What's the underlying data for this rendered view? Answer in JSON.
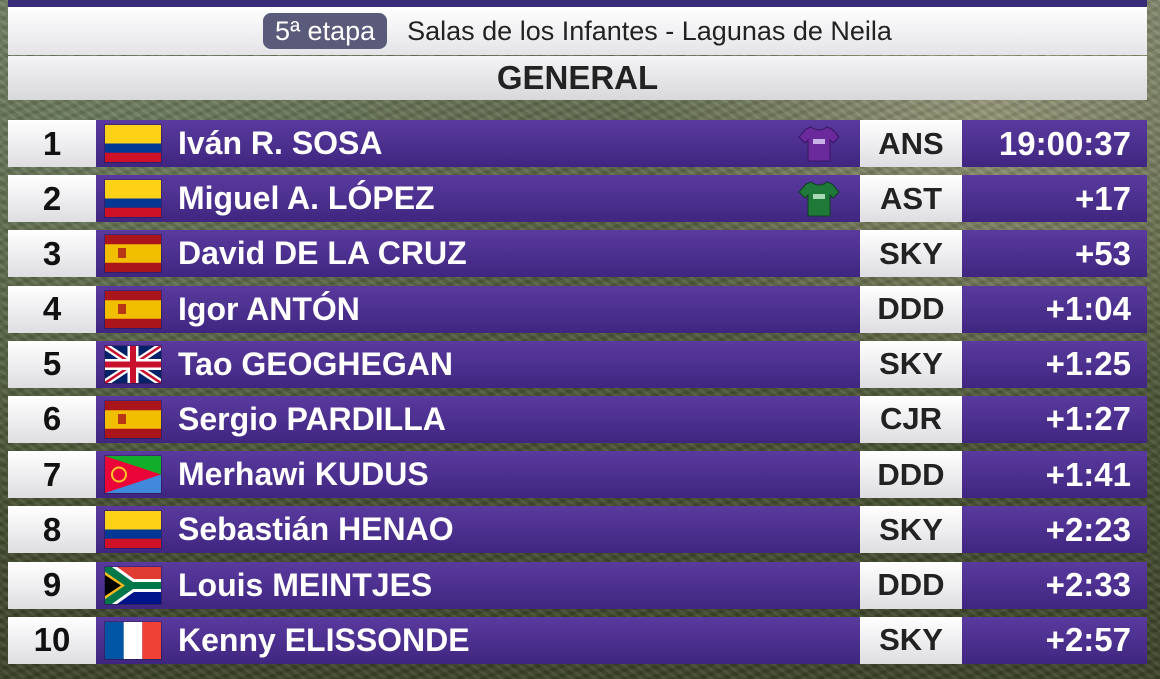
{
  "header": {
    "stage": "5ª etapa",
    "route": "Salas de los Infantes - Lagunas de Neila"
  },
  "classification": "GENERAL",
  "colors": {
    "bar_purple": "#4b2f8c",
    "jersey_purple": "#6a2a9c",
    "jersey_green": "#1f7a3a"
  },
  "standings": [
    {
      "pos": "1",
      "flag": "colombia-flag",
      "name": "Iván R. SOSA",
      "jersey": "purple-jersey-icon",
      "team": "ANS",
      "time": "19:00:37"
    },
    {
      "pos": "2",
      "flag": "colombia-flag",
      "name": "Miguel A. LÓPEZ",
      "jersey": "green-jersey-icon",
      "team": "AST",
      "time": "+17"
    },
    {
      "pos": "3",
      "flag": "spain-flag",
      "name": "David DE LA CRUZ",
      "jersey": "",
      "team": "SKY",
      "time": "+53"
    },
    {
      "pos": "4",
      "flag": "spain-flag",
      "name": "Igor ANTÓN",
      "jersey": "",
      "team": "DDD",
      "time": "+1:04"
    },
    {
      "pos": "5",
      "flag": "united-kingdom-flag",
      "name": "Tao GEOGHEGAN",
      "jersey": "",
      "team": "SKY",
      "time": "+1:25"
    },
    {
      "pos": "6",
      "flag": "spain-flag",
      "name": "Sergio PARDILLA",
      "jersey": "",
      "team": "CJR",
      "time": "+1:27"
    },
    {
      "pos": "7",
      "flag": "eritrea-flag",
      "name": "Merhawi KUDUS",
      "jersey": "",
      "team": "DDD",
      "time": "+1:41"
    },
    {
      "pos": "8",
      "flag": "colombia-flag",
      "name": "Sebastián HENAO",
      "jersey": "",
      "team": "SKY",
      "time": "+2:23"
    },
    {
      "pos": "9",
      "flag": "south-africa-flag",
      "name": "Louis MEINTJES",
      "jersey": "",
      "team": "DDD",
      "time": "+2:33"
    },
    {
      "pos": "10",
      "flag": "france-flag",
      "name": "Kenny ELISSONDE",
      "jersey": "",
      "team": "SKY",
      "time": "+2:57"
    }
  ]
}
